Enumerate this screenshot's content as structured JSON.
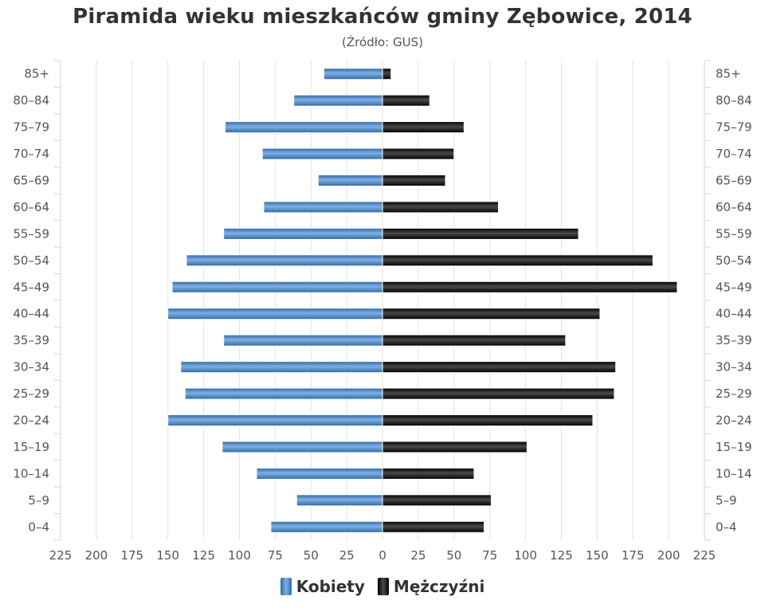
{
  "chart_data": {
    "type": "bar",
    "orientation": "horizontal",
    "title": "Piramida wieku mieszkańców gminy Zębowice, 2014",
    "subtitle": "(Źródło: GUS)",
    "categories": [
      "85+",
      "80–84",
      "75–79",
      "70–74",
      "65–69",
      "60–64",
      "55–59",
      "50–54",
      "45–49",
      "40–44",
      "35–39",
      "30–34",
      "25–29",
      "20–24",
      "15–19",
      "10–14",
      "5–9",
      "0–4"
    ],
    "x_ticks": [
      "225",
      "200",
      "175",
      "150",
      "125",
      "100",
      "75",
      "50",
      "25",
      "0",
      "25",
      "50",
      "75",
      "100",
      "125",
      "150",
      "175",
      "200",
      "225"
    ],
    "xlim": [
      -225,
      225
    ],
    "series": [
      {
        "name": "Kobiety",
        "color": "#4a86c5",
        "values": [
          41,
          62,
          110,
          84,
          45,
          83,
          111,
          137,
          147,
          150,
          111,
          141,
          138,
          150,
          112,
          88,
          60,
          78
        ]
      },
      {
        "name": "Mężczyźni",
        "color": "#1a1a1a",
        "values": [
          6,
          33,
          57,
          50,
          44,
          81,
          137,
          189,
          206,
          152,
          128,
          163,
          162,
          147,
          101,
          64,
          76,
          71
        ]
      }
    ],
    "grid": true,
    "legend_position": "bottom"
  }
}
